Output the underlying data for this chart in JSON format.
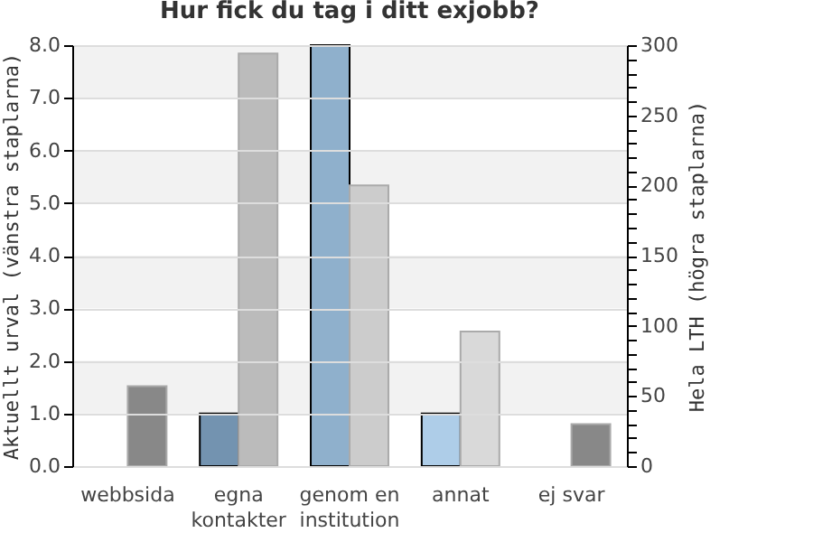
{
  "chart_data": {
    "type": "bar",
    "title": "Hur fick du tag i ditt exjobb?",
    "categories": [
      "webbsida",
      "egna\nkontakter",
      "genom en\ninstitution",
      "annat",
      "ej svar"
    ],
    "ylabel": "Aktuellt urval (vänstra staplarna)",
    "y2label": "Hela LTH (högra staplarna)",
    "series": [
      {
        "values": [
          0,
          1,
          8,
          1,
          0
        ],
        "colors": [
          "#7393b0",
          "#7393b0",
          "#8fb0cc",
          "#aecde8",
          "#7393b0"
        ]
      },
      {
        "values": [
          57,
          294,
          200,
          96,
          30
        ],
        "colors": [
          "#888888",
          "#bbbbbb",
          "#cccccc",
          "#d9d9d9",
          "#888888"
        ],
        "axis": "y2"
      }
    ],
    "ylim": [
      0,
      8
    ],
    "yticks": [
      {
        "value": 0,
        "label": "0.0"
      },
      {
        "value": 1,
        "label": "1.0"
      },
      {
        "value": 2,
        "label": "2.0"
      },
      {
        "value": 3,
        "label": "3.0"
      },
      {
        "value": 4,
        "label": "4.0"
      },
      {
        "value": 5,
        "label": "5.0"
      },
      {
        "value": 6,
        "label": "6.0"
      },
      {
        "value": 7,
        "label": "7.0"
      },
      {
        "value": 8,
        "label": "8.0"
      }
    ],
    "y2lim": [
      0,
      300
    ],
    "y2ticks": [
      0,
      {
        "value": 10,
        "label": null
      },
      {
        "value": 20,
        "label": null
      },
      {
        "value": 30,
        "label": null
      },
      {
        "value": 40,
        "label": null
      },
      50,
      {
        "value": 60,
        "label": null
      },
      {
        "value": 70,
        "label": null
      },
      {
        "value": 80,
        "label": null
      },
      {
        "value": 90,
        "label": null
      },
      100,
      {
        "value": 110,
        "label": null
      },
      {
        "value": 120,
        "label": null
      },
      {
        "value": 130,
        "label": null
      },
      {
        "value": 140,
        "label": null
      },
      150,
      {
        "value": 160,
        "label": null
      },
      {
        "value": 170,
        "label": null
      },
      {
        "value": 180,
        "label": null
      },
      {
        "value": 190,
        "label": null
      },
      200,
      {
        "value": 210,
        "label": null
      },
      {
        "value": 220,
        "label": null
      },
      {
        "value": 230,
        "label": null
      },
      {
        "value": 240,
        "label": null
      },
      250,
      {
        "value": 260,
        "label": null
      },
      {
        "value": 270,
        "label": null
      },
      {
        "value": 280,
        "label": null
      },
      {
        "value": 290,
        "label": null
      },
      300
    ],
    "bands": [
      {
        "axis": "y",
        "from": 1,
        "to": 2,
        "color": "#f2f2f2"
      },
      {
        "axis": "y",
        "from": 3,
        "to": 4,
        "color": "#f2f2f2"
      },
      {
        "axis": "y",
        "from": 5,
        "to": 6,
        "color": "#f2f2f2"
      },
      {
        "axis": "y",
        "from": 7,
        "to": 8,
        "color": "#f2f2f2"
      }
    ],
    "grid": "y"
  }
}
